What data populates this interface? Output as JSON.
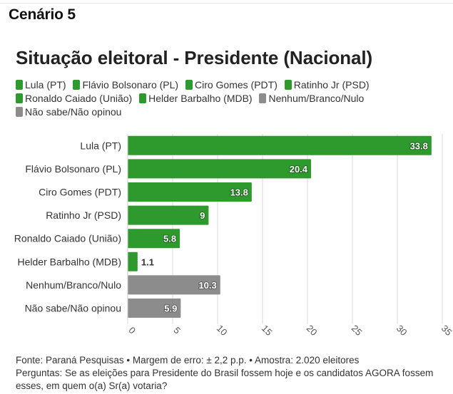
{
  "scenario_label": "Cenário 5",
  "legend": [
    {
      "label": "Lula (PT)",
      "color": "#2e9a2e"
    },
    {
      "label": "Flávio Bolsonaro (PL)",
      "color": "#2e9a2e"
    },
    {
      "label": "Ciro Gomes (PDT)",
      "color": "#2e9a2e"
    },
    {
      "label": "Ratinho Jr (PSD)",
      "color": "#2e9a2e"
    },
    {
      "label": "Ronaldo Caiado (União)",
      "color": "#2e9a2e"
    },
    {
      "label": "Helder Barbalho (MDB)",
      "color": "#2e9a2e"
    },
    {
      "label": "Nenhum/Branco/Nulo",
      "color": "#8c8c8c"
    },
    {
      "label": "Não sabe/Não opinou",
      "color": "#8c8c8c"
    }
  ],
  "footer": {
    "source": "Fonte: Paraná Pesquisas • Margem de erro: ± 2,2 p.p. • Amostra: 2.020 eleitores",
    "question": "Perguntas: Se as eleições para Presidente do Brasil fossem hoje e os candidatos AGORA fossem esses, em quem o(a) Sr(a) votaria?"
  },
  "chart_data": {
    "type": "bar",
    "orientation": "horizontal",
    "title": "Situação eleitoral - Presidente (Nacional)",
    "categories": [
      "Lula (PT)",
      "Flávio Bolsonaro (PL)",
      "Ciro Gomes (PDT)",
      "Ratinho Jr (PSD)",
      "Ronaldo Caiado (União)",
      "Helder Barbalho (MDB)",
      "Nenhum/Branco/Nulo",
      "Não sabe/Não opinou"
    ],
    "values": [
      33.8,
      20.4,
      13.8,
      9,
      5.8,
      1.1,
      10.3,
      5.9
    ],
    "value_labels": [
      "33.8",
      "20.4",
      "13.8",
      "9",
      "5.8",
      "1.1",
      "10.3",
      "5.9"
    ],
    "colors": [
      "#2e9a2e",
      "#2e9a2e",
      "#2e9a2e",
      "#2e9a2e",
      "#2e9a2e",
      "#2e9a2e",
      "#8c8c8c",
      "#8c8c8c"
    ],
    "xlim": [
      0,
      35
    ],
    "x_ticks": [
      0,
      5,
      10,
      15,
      20,
      25,
      30,
      35
    ],
    "x_tick_labels": [
      "0",
      "5",
      "10",
      "15",
      "20",
      "25",
      "30",
      "35"
    ],
    "xlabel": "",
    "ylabel": "",
    "grid": true,
    "legend_position": "top-left"
  }
}
